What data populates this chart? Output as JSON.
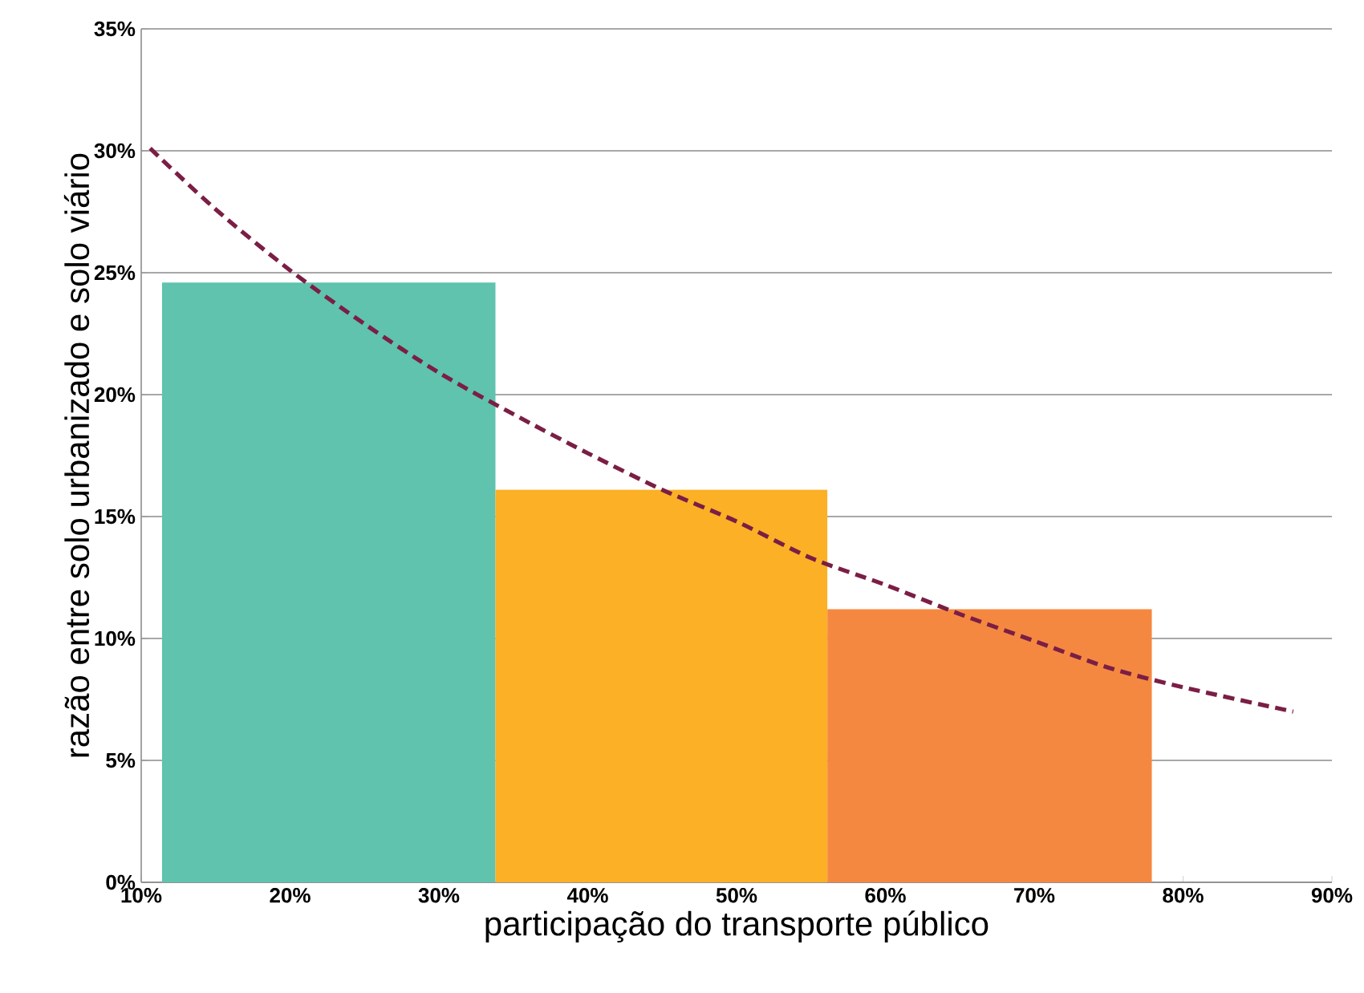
{
  "chart_data": {
    "type": "histogram",
    "xlabel": "participação do transporte público",
    "ylabel": "razão entre solo urbanizado e solo viário",
    "series": [
      {
        "bins": [
          11.4,
          33.8,
          56.1,
          77.9
        ],
        "values": [
          24.6,
          16.1,
          11.2
        ],
        "colors": [
          "#5fc3ad",
          "#fbb026",
          "#f58841"
        ]
      },
      {
        "type": "line",
        "color": "#7b1e45",
        "line_style": "dashed",
        "x": [
          10.6,
          15,
          20,
          25,
          30,
          35,
          40,
          45,
          50,
          55,
          60,
          65,
          70,
          75,
          80,
          87.4
        ],
        "values": [
          30.1,
          27.6,
          25.1,
          22.9,
          20.9,
          19.2,
          17.6,
          16.1,
          14.8,
          13.3,
          12.2,
          11.0,
          9.9,
          8.8,
          8.0,
          7.0
        ]
      }
    ],
    "xlim": [
      10,
      90
    ],
    "xticks": [
      {
        "value": 10,
        "label": "10%"
      },
      {
        "value": 20,
        "label": "20%"
      },
      {
        "value": 30,
        "label": "30%"
      },
      {
        "value": 40,
        "label": "40%"
      },
      {
        "value": 50,
        "label": "50%"
      },
      {
        "value": 60,
        "label": "60%"
      },
      {
        "value": 70,
        "label": "70%"
      },
      {
        "value": 80,
        "label": "80%"
      },
      {
        "value": 90,
        "label": "90%"
      }
    ],
    "ylim": [
      0,
      35
    ],
    "yticks": [
      {
        "value": 0,
        "label": "0%"
      },
      {
        "value": 5,
        "label": "5%"
      },
      {
        "value": 10,
        "label": "10%"
      },
      {
        "value": 15,
        "label": "15%"
      },
      {
        "value": 20,
        "label": "20%"
      },
      {
        "value": 25,
        "label": "25%"
      },
      {
        "value": 30,
        "label": "30%"
      },
      {
        "value": 35,
        "label": "35%"
      }
    ],
    "grid": "y"
  }
}
